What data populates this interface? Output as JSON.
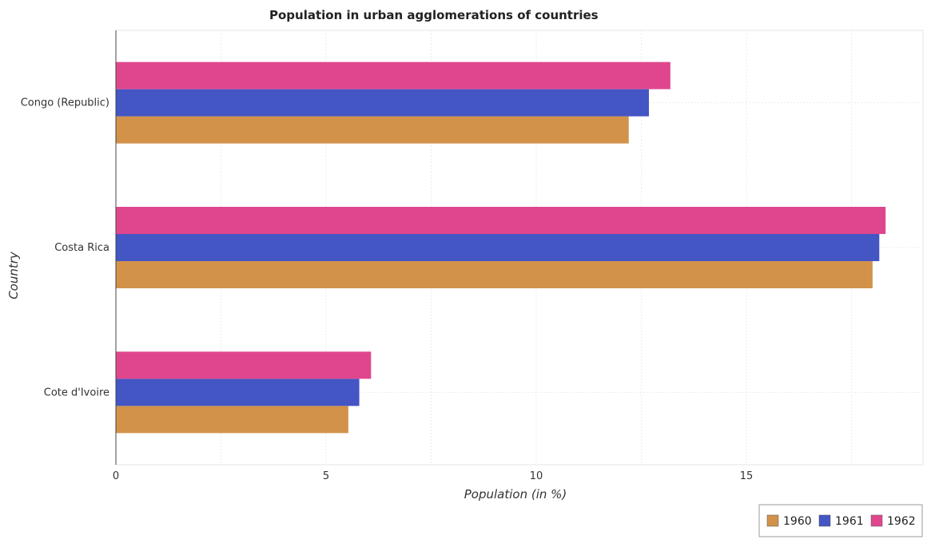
{
  "chart_data": {
    "type": "bar",
    "orientation": "horizontal",
    "title": "Population in urban agglomerations of countries",
    "xlabel": "Population (in %)",
    "ylabel": "Country",
    "categories": [
      "Congo (Republic)",
      "Costa Rica",
      "Cote d'Ivoire"
    ],
    "series": [
      {
        "name": "1960",
        "color": "#d2924a",
        "values": [
          12.2,
          18.0,
          5.53
        ]
      },
      {
        "name": "1961",
        "color": "#4455c4",
        "values": [
          12.68,
          18.16,
          5.79
        ]
      },
      {
        "name": "1962",
        "color": "#e0468e",
        "values": [
          13.19,
          18.31,
          6.07
        ]
      }
    ],
    "xlim": [
      0,
      19.2
    ],
    "xticks": [
      0,
      5,
      10,
      15
    ],
    "grid": true,
    "legend_position": "bottom-right"
  }
}
